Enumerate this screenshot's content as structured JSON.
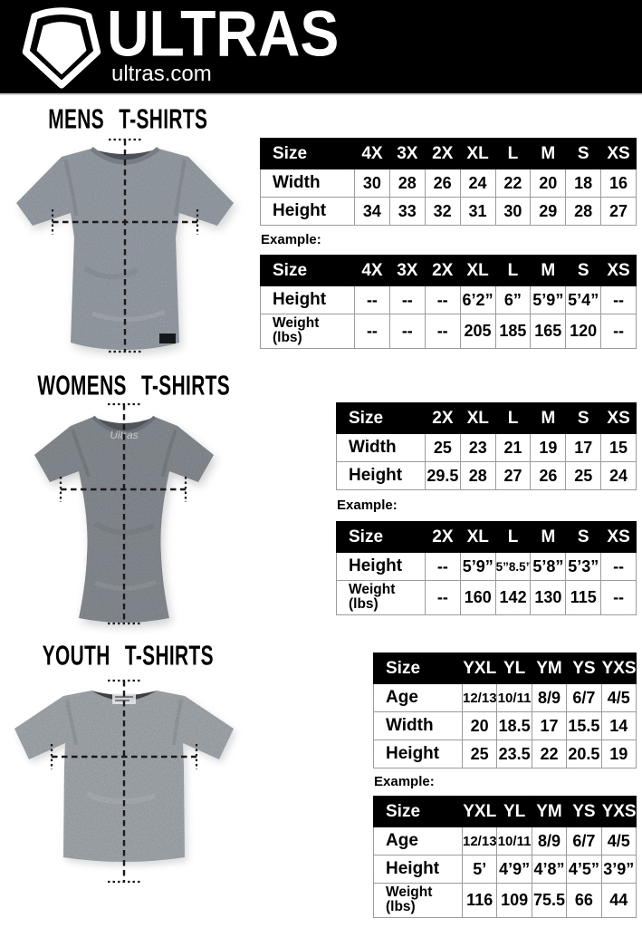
{
  "header": {
    "brand": "ULTRAS",
    "site": "ultras.com",
    "logo_icon": "pentagon-badge-icon",
    "bg": "#000000"
  },
  "sections": {
    "mens": {
      "title": "MENS T-SHIRTS",
      "example_label": "Example:",
      "size_chart": {
        "columns": [
          "Size",
          "4X",
          "3X",
          "2X",
          "XL",
          "L",
          "M",
          "S",
          "XS"
        ],
        "rows": [
          {
            "label": "Width",
            "values": [
              "30",
              "28",
              "26",
              "24",
              "22",
              "20",
              "18",
              "16"
            ]
          },
          {
            "label": "Height",
            "values": [
              "34",
              "33",
              "32",
              "31",
              "30",
              "29",
              "28",
              "27"
            ]
          }
        ]
      },
      "example_chart": {
        "columns": [
          "Size",
          "4X",
          "3X",
          "2X",
          "XL",
          "L",
          "M",
          "S",
          "XS"
        ],
        "rows": [
          {
            "label": "Height",
            "values": [
              "--",
              "--",
              "--",
              "6’2”",
              "6”",
              "5’9”",
              "5’4”",
              "--"
            ]
          },
          {
            "label": "Weight\n(lbs)",
            "values": [
              "--",
              "--",
              "--",
              "205",
              "185",
              "165",
              "120",
              "--"
            ]
          }
        ]
      }
    },
    "womens": {
      "title": "WOMENS T-SHIRTS",
      "example_label": "Example:",
      "neck_label": "Ultras",
      "size_chart": {
        "columns": [
          "Size",
          "2X",
          "XL",
          "L",
          "M",
          "S",
          "XS"
        ],
        "rows": [
          {
            "label": "Width",
            "values": [
              "25",
              "23",
              "21",
              "19",
              "17",
              "15"
            ]
          },
          {
            "label": "Height",
            "values": [
              "29.5",
              "28",
              "27",
              "26",
              "25",
              "24"
            ]
          }
        ]
      },
      "example_chart": {
        "columns": [
          "Size",
          "2X",
          "XL",
          "L",
          "M",
          "S",
          "XS"
        ],
        "rows": [
          {
            "label": "Height",
            "values": [
              "--",
              "5’9”",
              "5”8.5”",
              "5’8”",
              "5’3”",
              "--"
            ]
          },
          {
            "label": "Weight\n(lbs)",
            "values": [
              "--",
              "160",
              "142",
              "130",
              "115",
              "--"
            ]
          }
        ]
      }
    },
    "youth": {
      "title": "YOUTH T-SHIRTS",
      "example_label": "Example:",
      "size_chart": {
        "columns": [
          "Size",
          "YXL",
          "YL",
          "YM",
          "YS",
          "YXS"
        ],
        "rows": [
          {
            "label": "Age",
            "values": [
              "12/13",
              "10/11",
              "8/9",
              "6/7",
              "4/5"
            ]
          },
          {
            "label": "Width",
            "values": [
              "20",
              "18.5",
              "17",
              "15.5",
              "14"
            ]
          },
          {
            "label": "Height",
            "values": [
              "25",
              "23.5",
              "22",
              "20.5",
              "19"
            ]
          }
        ]
      },
      "example_chart": {
        "columns": [
          "Size",
          "YXL",
          "YL",
          "YM",
          "YS",
          "YXS"
        ],
        "rows": [
          {
            "label": "Age",
            "values": [
              "12/13",
              "10/11",
              "8/9",
              "6/7",
              "4/5"
            ]
          },
          {
            "label": "Height",
            "values": [
              "5’",
              "4’9”",
              "4’8”",
              "4’5”",
              "3’9”"
            ]
          },
          {
            "label": "Weight\n(lbs)",
            "values": [
              "116",
              "109",
              "75.5",
              "66",
              "44"
            ]
          }
        ]
      }
    }
  },
  "colors": {
    "header_bg": "#000000",
    "table_header_bg": "#000000",
    "table_header_text": "#ffffff",
    "table_border": "#9b9b9b",
    "mens_shirt": "#8e959d",
    "womens_shirt": "#7d8389",
    "youth_shirt": "#99a0a5"
  }
}
